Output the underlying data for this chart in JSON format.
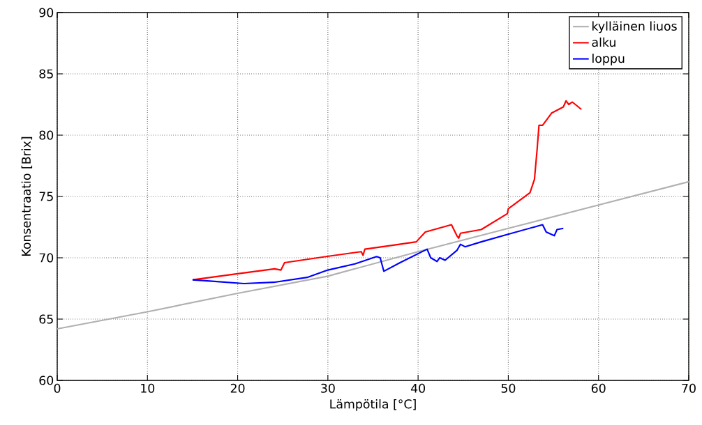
{
  "chart_data": {
    "type": "line",
    "xlabel": "Lämpötila [°C]",
    "ylabel": "Konsentraatio [Brix]",
    "xlim": [
      0,
      70
    ],
    "ylim": [
      60,
      90
    ],
    "xticks": [
      0,
      10,
      20,
      30,
      40,
      50,
      60,
      70
    ],
    "yticks": [
      60,
      65,
      70,
      75,
      80,
      85,
      90
    ],
    "grid": true,
    "legend": "top right",
    "line_style": "solid",
    "series": [
      {
        "name": "kylläinen liuos",
        "color": "#b0b0b0",
        "x": [
          0,
          10,
          20,
          30,
          40,
          50,
          60,
          70
        ],
        "values": [
          64.2,
          65.6,
          67.1,
          68.5,
          70.5,
          72.4,
          74.3,
          76.2
        ]
      },
      {
        "name": "alku",
        "color": "#ff0000",
        "x": [
          15,
          20,
          24.1,
          24.8,
          25.2,
          29.8,
          33.7,
          33.9,
          34.1,
          37,
          39.8,
          40.8,
          43.7,
          44.3,
          44.5,
          44.7,
          47,
          49.9,
          50.0,
          52.4,
          52.9,
          53.2,
          53.4,
          53.8,
          54.8,
          56.1,
          56.4,
          56.7,
          57.1,
          58.1
        ],
        "values": [
          68.2,
          68.7,
          69.1,
          69.0,
          69.6,
          70.1,
          70.5,
          70.2,
          70.7,
          71.0,
          71.3,
          72.1,
          72.7,
          71.8,
          71.6,
          72.0,
          72.3,
          73.6,
          74.0,
          75.3,
          76.4,
          78.9,
          80.8,
          80.8,
          81.8,
          82.3,
          82.8,
          82.5,
          82.7,
          82.1
        ]
      },
      {
        "name": "loppu",
        "color": "#0000ff",
        "x": [
          15,
          16.9,
          20.7,
          24,
          27.7,
          30.0,
          33,
          35.4,
          35.8,
          36.2,
          38,
          41.0,
          41.4,
          42.1,
          42.4,
          43.0,
          44.3,
          44.7,
          45.2,
          47,
          49.9,
          53.8,
          54.2,
          55.1,
          55.4,
          56.1
        ],
        "values": [
          68.2,
          68.1,
          67.9,
          68.0,
          68.4,
          69.0,
          69.5,
          70.1,
          70.0,
          68.9,
          69.6,
          70.7,
          70.0,
          69.7,
          70.0,
          69.8,
          70.6,
          71.1,
          70.9,
          71.3,
          71.9,
          72.7,
          72.1,
          71.8,
          72.3,
          72.4
        ]
      }
    ]
  }
}
